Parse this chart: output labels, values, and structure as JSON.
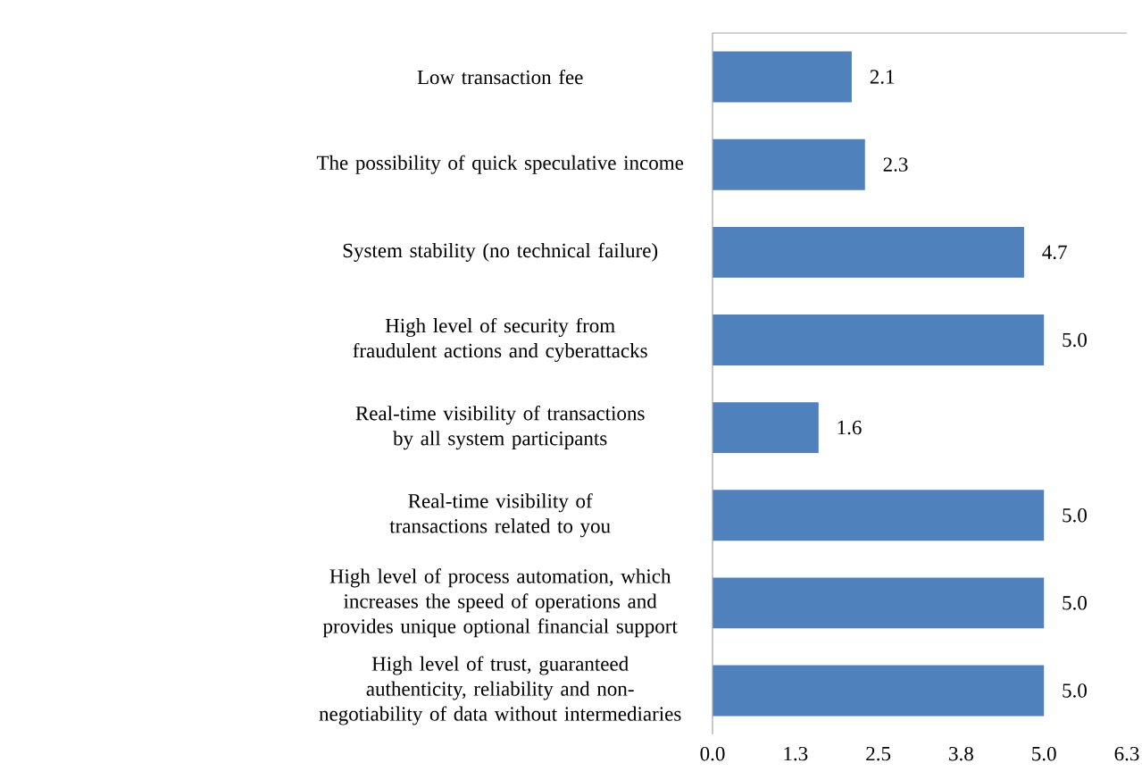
{
  "chart_data": {
    "type": "bar",
    "orientation": "horizontal",
    "categories": [
      "Low transaction fee",
      "The possibility of quick speculative income",
      "System stability (no technical failure)",
      "High level of security from fraudulent actions and cyberattacks",
      "Real-time visibility of transactions by all system participants",
      "Real-time visibility of transactions related to you",
      "High level of process automation, which increases the speed of operations and provides unique optional financial support",
      "High level of trust, guaranteed authenticity, reliability and non-negotiability of data without intermediaries"
    ],
    "values": [
      2.1,
      2.3,
      4.7,
      5.0,
      1.6,
      5.0,
      5.0,
      5.0
    ],
    "value_labels": [
      "2.1",
      "2.3",
      "4.7",
      "5.0",
      "1.6",
      "5.0",
      "5.0",
      "5.0"
    ],
    "color": "#4f81bd",
    "xlim": [
      0,
      6.25
    ],
    "xticks": [
      {
        "value": 0,
        "label": "0.0"
      },
      {
        "value": 1.25,
        "label": "1.3"
      },
      {
        "value": 2.5,
        "label": "2.5"
      },
      {
        "value": 3.75,
        "label": "3.8"
      },
      {
        "value": 5,
        "label": "5.0"
      },
      {
        "value": 6.25,
        "label": "6.3"
      }
    ],
    "grid": false
  }
}
